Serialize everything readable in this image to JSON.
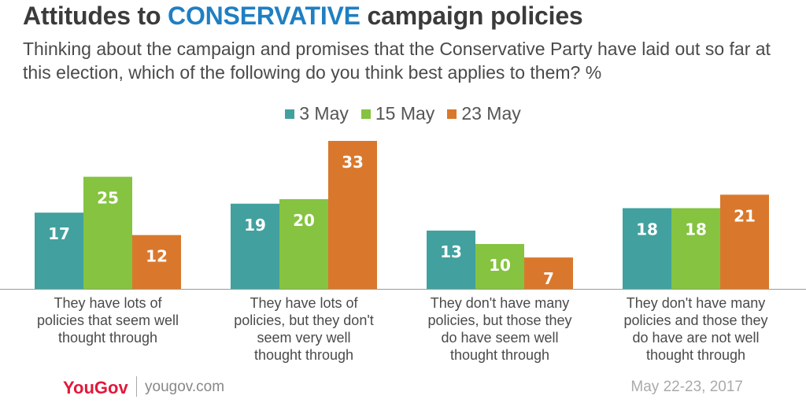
{
  "header": {
    "title_prefix": "Attitudes to ",
    "title_accent": "CONSERVATIVE",
    "title_suffix": " campaign policies",
    "subtitle": "Thinking about the campaign and promises that the Conservative Party have laid out so far at this election, which of the following do you think best applies to them? %"
  },
  "chart_data": {
    "type": "bar",
    "title": "Attitudes to CONSERVATIVE campaign policies",
    "categories": [
      "They have lots of policies that seem well thought through",
      "They have lots of policies, but they don't seem very well thought through",
      "They don't have many policies, but those they do have seem well thought through",
      "They don't have many policies and those they do have are not well thought through"
    ],
    "category_lines": [
      [
        "They have lots of",
        "policies that seem well",
        "thought through"
      ],
      [
        "They have lots of",
        "policies, but they don't",
        "seem very well",
        "thought through"
      ],
      [
        "They don't have many",
        "policies, but those they",
        "do have seem well",
        "thought through"
      ],
      [
        "They don't have many",
        "policies and those they",
        "do have are not well",
        "thought through"
      ]
    ],
    "series": [
      {
        "name": "3 May",
        "color": "#42a19e",
        "values": [
          17,
          19,
          13,
          18
        ]
      },
      {
        "name": "15 May",
        "color": "#85c340",
        "values": [
          25,
          20,
          10,
          18
        ]
      },
      {
        "name": "23 May",
        "color": "#d9782c",
        "values": [
          12,
          33,
          7,
          21
        ]
      }
    ],
    "legend_position": "top-center",
    "grid": false,
    "ylim": [
      0,
      33
    ]
  },
  "footer": {
    "logo": "YouGov",
    "site": "yougov.com",
    "date": "May 22-23, 2017"
  }
}
